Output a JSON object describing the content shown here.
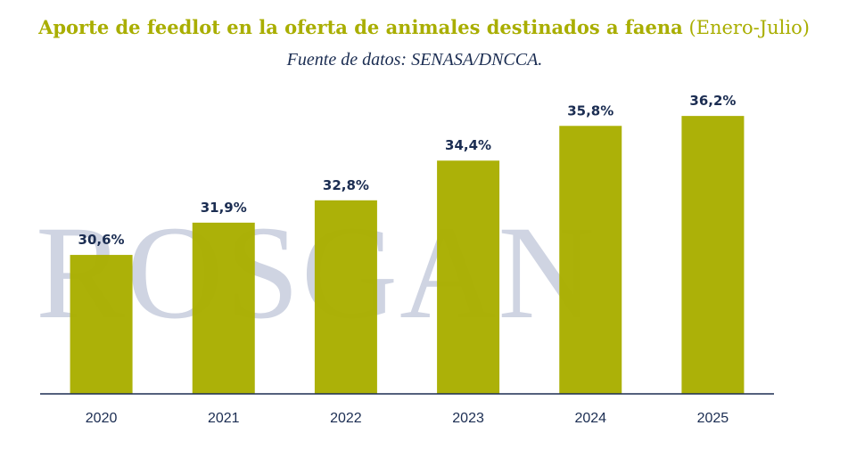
{
  "header": {
    "title_bold": "Aporte de feedlot en la oferta de animales destinados a faena",
    "title_light": "(Enero-Julio)",
    "subtitle": "Fuente de datos: SENASA/DNCCA."
  },
  "watermark": {
    "text": "ROSGAN"
  },
  "colors": {
    "bar": "#a9ae00",
    "label": "#1b2d52",
    "axis": "#1b2d52",
    "watermark": "#cfd4e2"
  },
  "chart_data": {
    "type": "bar",
    "title": "Aporte de feedlot en la oferta de animales destinados a faena (Enero-Julio)",
    "subtitle": "Fuente de datos: SENASA/DNCCA.",
    "categories": [
      "2020",
      "2021",
      "2022",
      "2023",
      "2024",
      "2025"
    ],
    "values": [
      30.6,
      31.9,
      32.8,
      34.4,
      35.8,
      36.2
    ],
    "data_labels": [
      "30,6%",
      "31,9%",
      "32,8%",
      "34,4%",
      "35,8%",
      "36,2%"
    ],
    "xlabel": "",
    "ylabel": "",
    "ylim": [
      25,
      38
    ],
    "grid": false,
    "legend": "none"
  }
}
